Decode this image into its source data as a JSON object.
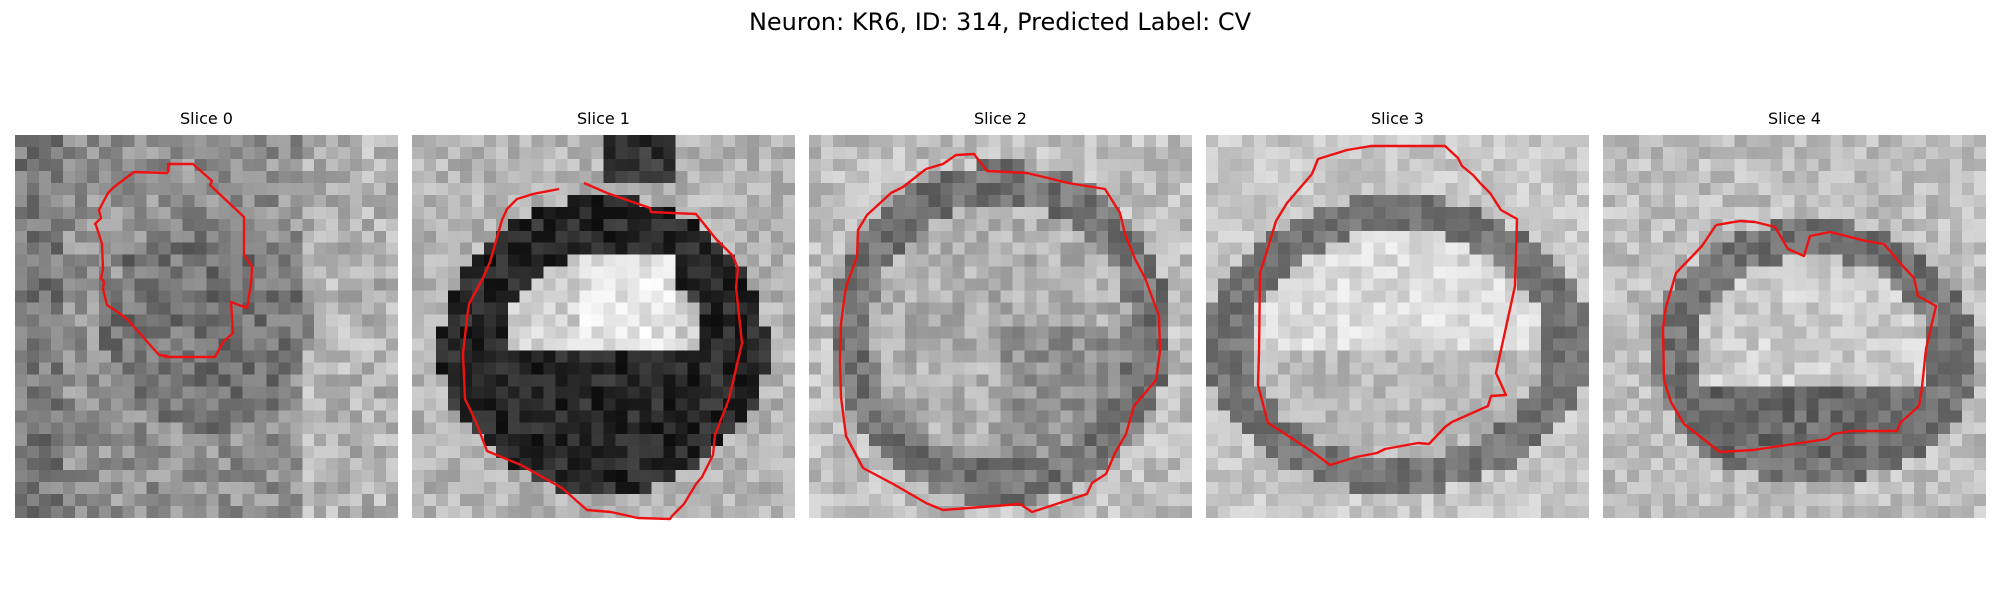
{
  "figure": {
    "title": "Neuron: KR6, ID: 314, Predicted Label: CV",
    "overlay_color": "#ee1111",
    "colormap": "grayscale"
  },
  "panels": [
    {
      "title": "Slice 0"
    },
    {
      "title": "Slice 1"
    },
    {
      "title": "Slice 2"
    },
    {
      "title": "Slice 3"
    },
    {
      "title": "Slice 4"
    }
  ]
}
